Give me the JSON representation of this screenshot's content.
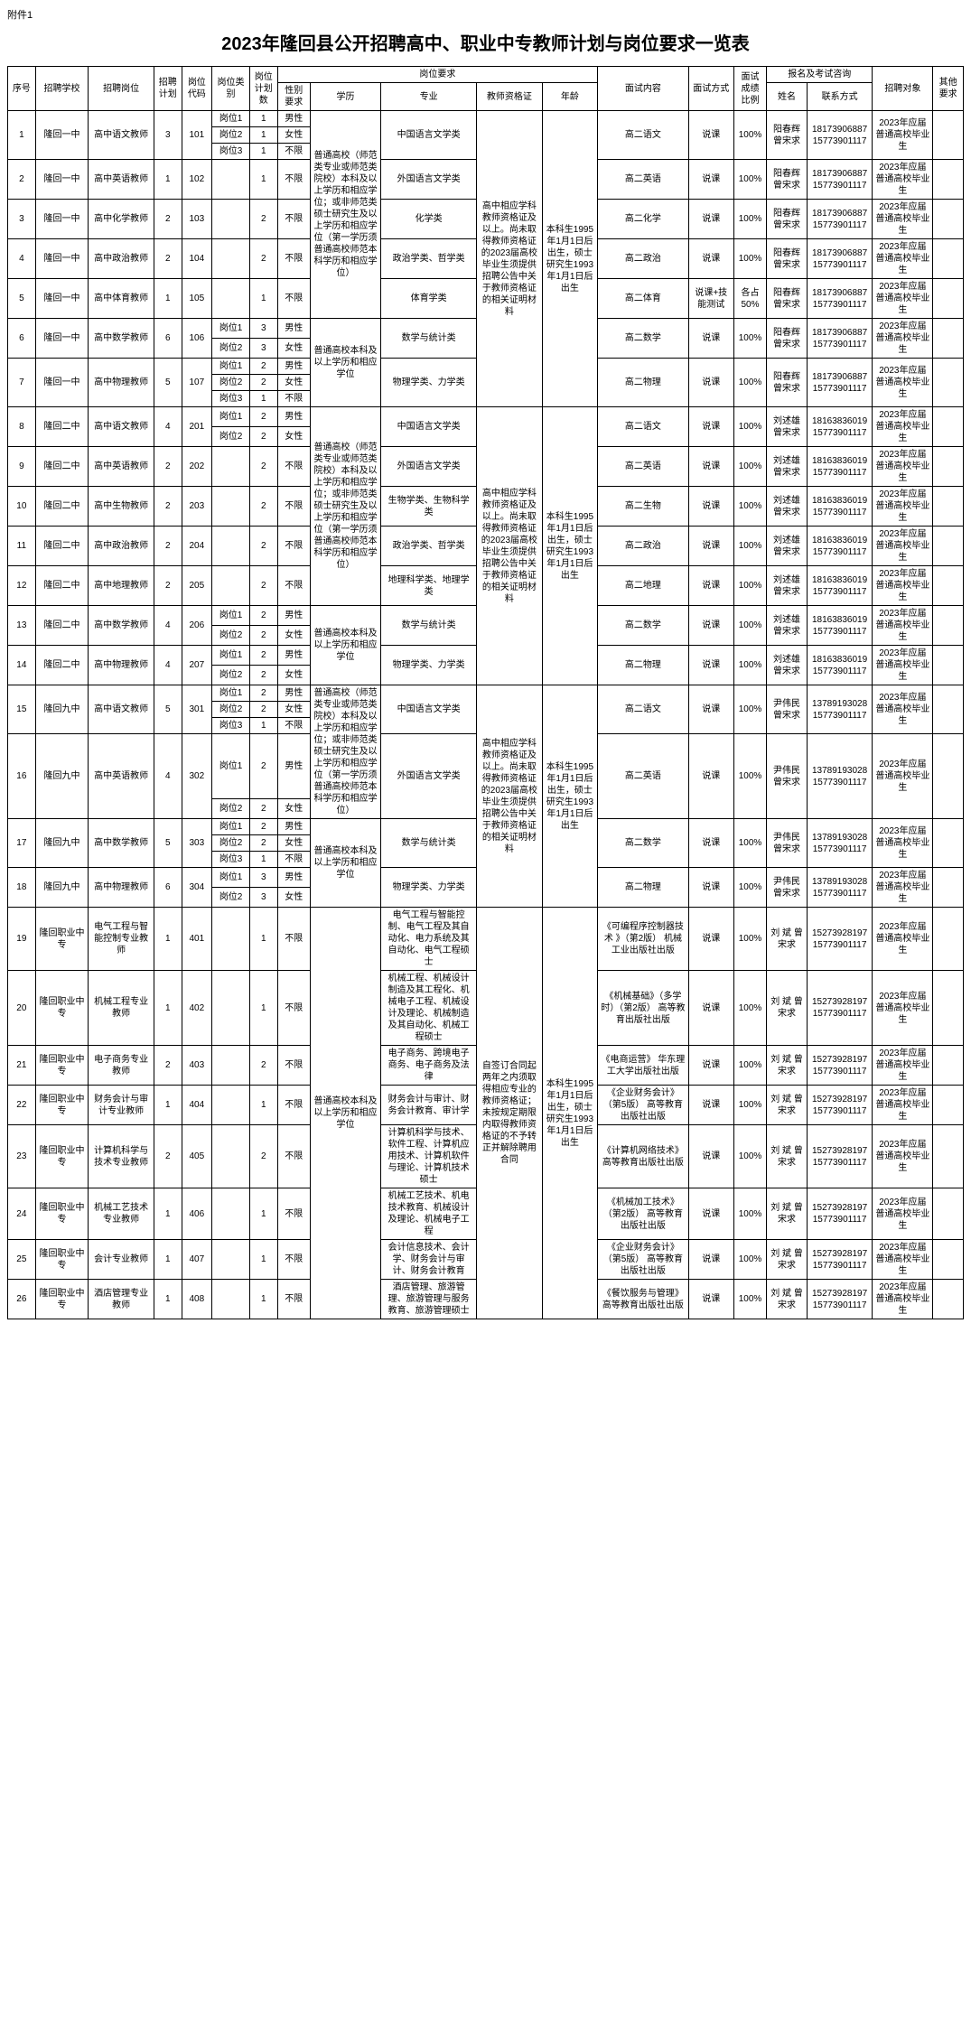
{
  "attach": "附件1",
  "title": "2023年隆回县公开招聘高中、职业中专教师计划与岗位要求一览表",
  "headers": {
    "seq": "序号",
    "school": "招聘学校",
    "position": "招聘岗位",
    "plan": "招聘计划",
    "code": "岗位代码",
    "type": "岗位类别",
    "count": "岗位计划数",
    "reqGroup": "岗位要求",
    "sex": "性别要求",
    "edu": "学历",
    "major": "专业",
    "cert": "教师资格证",
    "age": "年龄",
    "interview": "面试内容",
    "imode": "面试方式",
    "iratio": "面试成绩比例",
    "contactGroup": "报名及考试咨询",
    "cname": "姓名",
    "cphone": "联系方式",
    "target": "招聘对象",
    "other": "其他要求"
  },
  "edu_a": "普通高校（师范类专业或师范类院校）本科及以上学历和相应学位；或非师范类硕士研究生及以上学历和相应学位（第一学历须普通高校师范本科学历和相应学位）",
  "edu_b": "普通高校本科及以上学历和相应学位",
  "cert_hs": "高中相应学科教师资格证及以上。尚未取得教师资格证的2023届高校毕业生须提供招聘公告中关于教师资格证的相关证明材料",
  "cert_hs2": "高中相应学科教师资格证及以上。尚未取得教师资格证的2023届高校毕业生须提供招聘公告中关于教师资格证的相关证明材料",
  "cert_voc": "自签订合同起两年之内须取得相应专业的教师资格证；未按规定期限内取得教师资格证的不予转正并解除聘用合同",
  "age_a": "本科生1995年1月1日后出生，硕士研究生1993年1月1日后出生",
  "target_std": "2023年应届普通高校毕业生",
  "contacts": {
    "yang": {
      "name": "阳春辉 曾宋求",
      "phone": "18173906887 15773901117"
    },
    "liu": {
      "name": "刘述雄 曾宋求",
      "phone": "18163836019 15773901117"
    },
    "yin": {
      "name": "尹伟民 曾宋求",
      "phone": "13789193028 15773901117"
    },
    "liub": {
      "name": "刘 斌 曾宋求",
      "phone": "15273928197 15773901117"
    }
  },
  "rows": [
    {
      "seq": "1",
      "school": "隆回一中",
      "pos": "高中语文教师",
      "plan": "3",
      "code": "101",
      "types": [
        [
          "岗位1",
          "1",
          "男性"
        ],
        [
          "岗位2",
          "1",
          "女性"
        ],
        [
          "岗位3",
          "1",
          "不限"
        ]
      ],
      "major": "中国语言文学类",
      "intv": "高二语文",
      "imode": "说课",
      "iratio": "100%",
      "c": "yang"
    },
    {
      "seq": "2",
      "school": "隆回一中",
      "pos": "高中英语教师",
      "plan": "1",
      "code": "102",
      "types": [
        [
          "",
          "1",
          "不限"
        ]
      ],
      "major": "外国语言文学类",
      "intv": "高二英语",
      "imode": "说课",
      "iratio": "100%",
      "c": "yang"
    },
    {
      "seq": "3",
      "school": "隆回一中",
      "pos": "高中化学教师",
      "plan": "2",
      "code": "103",
      "types": [
        [
          "",
          "2",
          "不限"
        ]
      ],
      "major": "化学类",
      "intv": "高二化学",
      "imode": "说课",
      "iratio": "100%",
      "c": "yang"
    },
    {
      "seq": "4",
      "school": "隆回一中",
      "pos": "高中政治教师",
      "plan": "2",
      "code": "104",
      "types": [
        [
          "",
          "2",
          "不限"
        ]
      ],
      "major": "政治学类、哲学类",
      "intv": "高二政治",
      "imode": "说课",
      "iratio": "100%",
      "c": "yang"
    },
    {
      "seq": "5",
      "school": "隆回一中",
      "pos": "高中体育教师",
      "plan": "1",
      "code": "105",
      "types": [
        [
          "",
          "1",
          "不限"
        ]
      ],
      "major": "体育学类",
      "intv": "高二体育",
      "imode": "说课+技能测试",
      "iratio": "各占50%",
      "c": "yang"
    },
    {
      "seq": "6",
      "school": "隆回一中",
      "pos": "高中数学教师",
      "plan": "6",
      "code": "106",
      "types": [
        [
          "岗位1",
          "3",
          "男性"
        ],
        [
          "岗位2",
          "3",
          "女性"
        ]
      ],
      "major": "数学与统计类",
      "intv": "高二数学",
      "imode": "说课",
      "iratio": "100%",
      "c": "yang",
      "edu": "b"
    },
    {
      "seq": "7",
      "school": "隆回一中",
      "pos": "高中物理教师",
      "plan": "5",
      "code": "107",
      "types": [
        [
          "岗位1",
          "2",
          "男性"
        ],
        [
          "岗位2",
          "2",
          "女性"
        ],
        [
          "岗位3",
          "1",
          "不限"
        ]
      ],
      "major": "物理学类、力学类",
      "intv": "高二物理",
      "imode": "说课",
      "iratio": "100%",
      "c": "yang",
      "edu": "b"
    },
    {
      "seq": "8",
      "school": "隆回二中",
      "pos": "高中语文教师",
      "plan": "4",
      "code": "201",
      "types": [
        [
          "岗位1",
          "2",
          "男性"
        ],
        [
          "岗位2",
          "2",
          "女性"
        ]
      ],
      "major": "中国语言文学类",
      "intv": "高二语文",
      "imode": "说课",
      "iratio": "100%",
      "c": "liu"
    },
    {
      "seq": "9",
      "school": "隆回二中",
      "pos": "高中英语教师",
      "plan": "2",
      "code": "202",
      "types": [
        [
          "",
          "2",
          "不限"
        ]
      ],
      "major": "外国语言文学类",
      "intv": "高二英语",
      "imode": "说课",
      "iratio": "100%",
      "c": "liu"
    },
    {
      "seq": "10",
      "school": "隆回二中",
      "pos": "高中生物教师",
      "plan": "2",
      "code": "203",
      "types": [
        [
          "",
          "2",
          "不限"
        ]
      ],
      "major": "生物学类、生物科学类",
      "intv": "高二生物",
      "imode": "说课",
      "iratio": "100%",
      "c": "liu"
    },
    {
      "seq": "11",
      "school": "隆回二中",
      "pos": "高中政治教师",
      "plan": "2",
      "code": "204",
      "types": [
        [
          "",
          "2",
          "不限"
        ]
      ],
      "major": "政治学类、哲学类",
      "intv": "高二政治",
      "imode": "说课",
      "iratio": "100%",
      "c": "liu"
    },
    {
      "seq": "12",
      "school": "隆回二中",
      "pos": "高中地理教师",
      "plan": "2",
      "code": "205",
      "types": [
        [
          "",
          "2",
          "不限"
        ]
      ],
      "major": "地理科学类、地理学类",
      "intv": "高二地理",
      "imode": "说课",
      "iratio": "100%",
      "c": "liu"
    },
    {
      "seq": "13",
      "school": "隆回二中",
      "pos": "高中数学教师",
      "plan": "4",
      "code": "206",
      "types": [
        [
          "岗位1",
          "2",
          "男性"
        ],
        [
          "岗位2",
          "2",
          "女性"
        ]
      ],
      "major": "数学与统计类",
      "intv": "高二数学",
      "imode": "说课",
      "iratio": "100%",
      "c": "liu",
      "edu": "b"
    },
    {
      "seq": "14",
      "school": "隆回二中",
      "pos": "高中物理教师",
      "plan": "4",
      "code": "207",
      "types": [
        [
          "岗位1",
          "2",
          "男性"
        ],
        [
          "岗位2",
          "2",
          "女性"
        ]
      ],
      "major": "物理学类、力学类",
      "intv": "高二物理",
      "imode": "说课",
      "iratio": "100%",
      "c": "liu",
      "edu": "b"
    },
    {
      "seq": "15",
      "school": "隆回九中",
      "pos": "高中语文教师",
      "plan": "5",
      "code": "301",
      "types": [
        [
          "岗位1",
          "2",
          "男性"
        ],
        [
          "岗位2",
          "2",
          "女性"
        ],
        [
          "岗位3",
          "1",
          "不限"
        ]
      ],
      "major": "中国语言文学类",
      "intv": "高二语文",
      "imode": "说课",
      "iratio": "100%",
      "c": "yin"
    },
    {
      "seq": "16",
      "school": "隆回九中",
      "pos": "高中英语教师",
      "plan": "4",
      "code": "302",
      "types": [
        [
          "岗位1",
          "2",
          "男性"
        ],
        [
          "岗位2",
          "2",
          "女性"
        ]
      ],
      "major": "外国语言文学类",
      "intv": "高二英语",
      "imode": "说课",
      "iratio": "100%",
      "c": "yin"
    },
    {
      "seq": "17",
      "school": "隆回九中",
      "pos": "高中数学教师",
      "plan": "5",
      "code": "303",
      "types": [
        [
          "岗位1",
          "2",
          "男性"
        ],
        [
          "岗位2",
          "2",
          "女性"
        ],
        [
          "岗位3",
          "1",
          "不限"
        ]
      ],
      "major": "数学与统计类",
      "intv": "高二数学",
      "imode": "说课",
      "iratio": "100%",
      "c": "yin",
      "edu": "b"
    },
    {
      "seq": "18",
      "school": "隆回九中",
      "pos": "高中物理教师",
      "plan": "6",
      "code": "304",
      "types": [
        [
          "岗位1",
          "3",
          "男性"
        ],
        [
          "岗位2",
          "3",
          "女性"
        ]
      ],
      "major": "物理学类、力学类",
      "intv": "高二物理",
      "imode": "说课",
      "iratio": "100%",
      "c": "yin",
      "edu": "b"
    },
    {
      "seq": "19",
      "school": "隆回职业中专",
      "pos": "电气工程与智能控制专业教师",
      "plan": "1",
      "code": "401",
      "types": [
        [
          "",
          "1",
          "不限"
        ]
      ],
      "major": "电气工程与智能控制、电气工程及其自动化、电力系统及其自动化、电气工程硕士",
      "intv": "《可编程序控制器技术 》（第2版） 机械工业出版社出版",
      "imode": "说课",
      "iratio": "100%",
      "c": "liub",
      "edu": "b"
    },
    {
      "seq": "20",
      "school": "隆回职业中专",
      "pos": "机械工程专业教师",
      "plan": "1",
      "code": "402",
      "types": [
        [
          "",
          "1",
          "不限"
        ]
      ],
      "major": "机械工程、机械设计制造及其工程化、机械电子工程、机械设计及理论、机械制造及其自动化、机械工程硕士",
      "intv": "《机械基础》（多学时）（第2版） 高等教育出版社出版",
      "imode": "说课",
      "iratio": "100%",
      "c": "liub",
      "edu": "b"
    },
    {
      "seq": "21",
      "school": "隆回职业中专",
      "pos": "电子商务专业教师",
      "plan": "2",
      "code": "403",
      "types": [
        [
          "",
          "2",
          "不限"
        ]
      ],
      "major": "电子商务、跨境电子商务、电子商务及法律",
      "intv": "《电商运营》 华东理工大学出版社出版",
      "imode": "说课",
      "iratio": "100%",
      "c": "liub",
      "edu": "b"
    },
    {
      "seq": "22",
      "school": "隆回职业中专",
      "pos": "财务会计与审计专业教师",
      "plan": "1",
      "code": "404",
      "types": [
        [
          "",
          "1",
          "不限"
        ]
      ],
      "major": "财务会计与审计、财务会计教育、审计学",
      "intv": "《企业财务会计》（第5版） 高等教育出版社出版",
      "imode": "说课",
      "iratio": "100%",
      "c": "liub",
      "edu": "b"
    },
    {
      "seq": "23",
      "school": "隆回职业中专",
      "pos": "计算机科学与技术专业教师",
      "plan": "2",
      "code": "405",
      "types": [
        [
          "",
          "2",
          "不限"
        ]
      ],
      "major": "计算机科学与技术、软件工程、计算机应用技术、计算机软件与理论、计算机技术硕士",
      "intv": "《计算机网络技术》 高等教育出版社出版",
      "imode": "说课",
      "iratio": "100%",
      "c": "liub",
      "edu": "b"
    },
    {
      "seq": "24",
      "school": "隆回职业中专",
      "pos": "机械工艺技术专业教师",
      "plan": "1",
      "code": "406",
      "types": [
        [
          "",
          "1",
          "不限"
        ]
      ],
      "major": "机械工艺技术、机电技术教育、机械设计及理论、机械电子工程",
      "intv": "《机械加工技术》（第2版） 高等教育出版社出版",
      "imode": "说课",
      "iratio": "100%",
      "c": "liub",
      "edu": "b"
    },
    {
      "seq": "25",
      "school": "隆回职业中专",
      "pos": "会计专业教师",
      "plan": "1",
      "code": "407",
      "types": [
        [
          "",
          "1",
          "不限"
        ]
      ],
      "major": "会计信息技术、会计学、财务会计与审计、财务会计教育",
      "intv": "《企业财务会计》（第5版） 高等教育出版社出版",
      "imode": "说课",
      "iratio": "100%",
      "c": "liub",
      "edu": "b"
    },
    {
      "seq": "26",
      "school": "隆回职业中专",
      "pos": "酒店管理专业教师",
      "plan": "1",
      "code": "408",
      "types": [
        [
          "",
          "1",
          "不限"
        ]
      ],
      "major": "酒店管理、旅游管理、旅游管理与服务教育、旅游管理硕士",
      "intv": "《餐饮服务与管理》 高等教育出版社出版",
      "imode": "说课",
      "iratio": "100%",
      "c": "liub",
      "edu": "b"
    }
  ]
}
